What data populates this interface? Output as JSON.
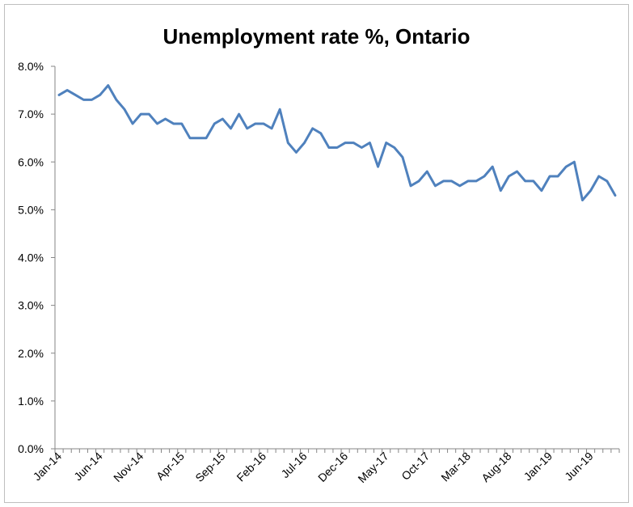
{
  "chart_data": {
    "type": "line",
    "title": "Unemployment rate %, Ontario",
    "xlabel": "",
    "ylabel": "",
    "ylim": [
      0,
      8
    ],
    "y_ticks": [
      "0.0%",
      "1.0%",
      "2.0%",
      "3.0%",
      "4.0%",
      "5.0%",
      "6.0%",
      "7.0%",
      "8.0%"
    ],
    "x_tick_labels": [
      "Jan-14",
      "Jun-14",
      "Nov-14",
      "Apr-15",
      "Sep-15",
      "Feb-16",
      "Jul-16",
      "Dec-16",
      "May-17",
      "Oct-17",
      "Mar-18",
      "Aug-18",
      "Jan-19",
      "Jun-19"
    ],
    "x_tick_step_months": 5,
    "grid": false,
    "legend": "none",
    "series_color": "#4F81BD",
    "series": [
      {
        "values": [
          7.4,
          7.5,
          7.4,
          7.3,
          7.3,
          7.4,
          7.6,
          7.3,
          7.1,
          6.8,
          7.0,
          7.0,
          6.8,
          6.9,
          6.8,
          6.8,
          6.5,
          6.5,
          6.5,
          6.8,
          6.9,
          6.7,
          7.0,
          6.7,
          6.8,
          6.8,
          6.7,
          7.1,
          6.4,
          6.2,
          6.4,
          6.7,
          6.6,
          6.3,
          6.3,
          6.4,
          6.4,
          6.3,
          6.4,
          5.9,
          6.4,
          6.3,
          6.1,
          5.5,
          5.6,
          5.8,
          5.5,
          5.6,
          5.6,
          5.5,
          5.6,
          5.6,
          5.7,
          5.9,
          5.4,
          5.7,
          5.8,
          5.6,
          5.6,
          5.4,
          5.7,
          5.7,
          5.9,
          6.0,
          5.2,
          5.4,
          5.7,
          5.6,
          5.3
        ]
      }
    ]
  }
}
